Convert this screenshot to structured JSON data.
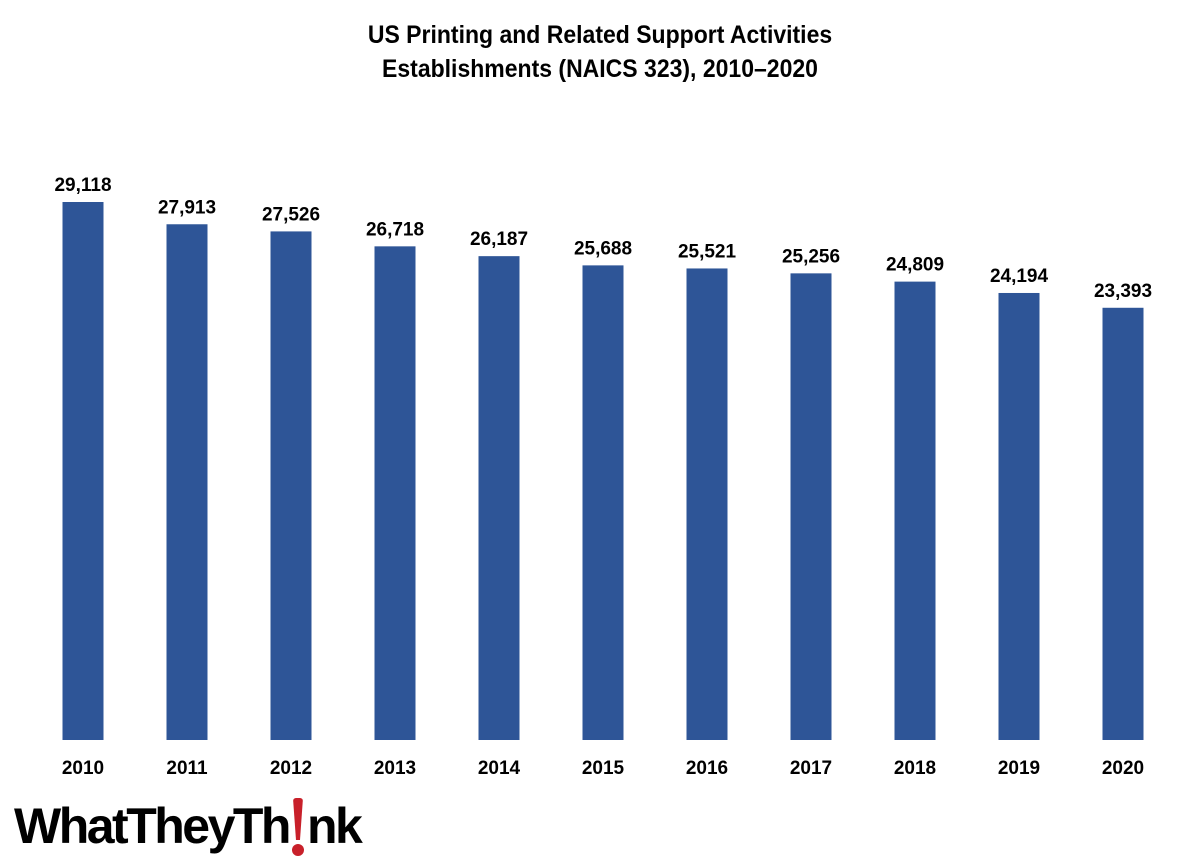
{
  "chart_data": {
    "type": "bar",
    "title_lines": [
      "US Printing and Related Support Activities",
      "Establishments (NAICS 323), 2010–2020"
    ],
    "categories": [
      "2010",
      "2011",
      "2012",
      "2013",
      "2014",
      "2015",
      "2016",
      "2017",
      "2018",
      "2019",
      "2020"
    ],
    "values": [
      29118,
      27913,
      27526,
      26718,
      26187,
      25688,
      25521,
      25256,
      24809,
      24194,
      23393
    ],
    "data_labels": [
      "29,118",
      "27,913",
      "27,526",
      "26,718",
      "26,187",
      "25,688",
      "25,521",
      "25,256",
      "24,809",
      "24,194",
      "23,393"
    ],
    "xlabel": "",
    "ylabel": "",
    "ylim": [
      0,
      29118
    ],
    "grid": false,
    "legend": "none",
    "bar_color": "#2e5597"
  },
  "logo": {
    "text_before": "WhatTheyTh",
    "text_after": "nk",
    "accent_color": "#c8202a"
  }
}
